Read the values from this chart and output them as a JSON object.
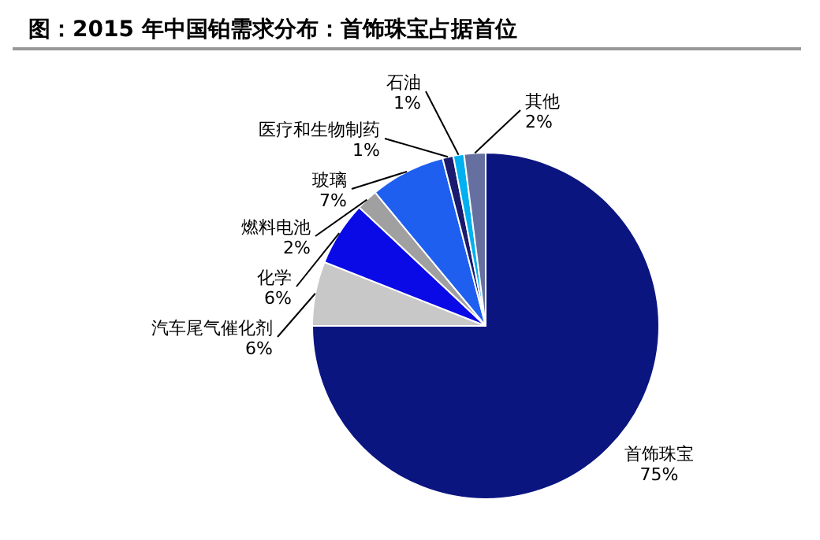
{
  "chart_data": {
    "type": "pie",
    "title": "图：2015 年中国铂需求分布：首饰珠宝占据首位",
    "categories": [
      "首饰珠宝",
      "汽车尾气催化剂",
      "化学",
      "燃料电池",
      "玻璃",
      "医疗和生物制药",
      "石油",
      "其他"
    ],
    "values": [
      75,
      6,
      6,
      2,
      7,
      1,
      1,
      2
    ],
    "value_labels": [
      "75%",
      "6%",
      "6%",
      "2%",
      "7%",
      "1%",
      "1%",
      "2%"
    ],
    "colors": [
      "#0a1580",
      "#c8c8c8",
      "#0a0ae6",
      "#a0a0a0",
      "#1e5ff0",
      "#1a1a6e",
      "#00b0f0",
      "#6670a0"
    ],
    "legend": false
  }
}
